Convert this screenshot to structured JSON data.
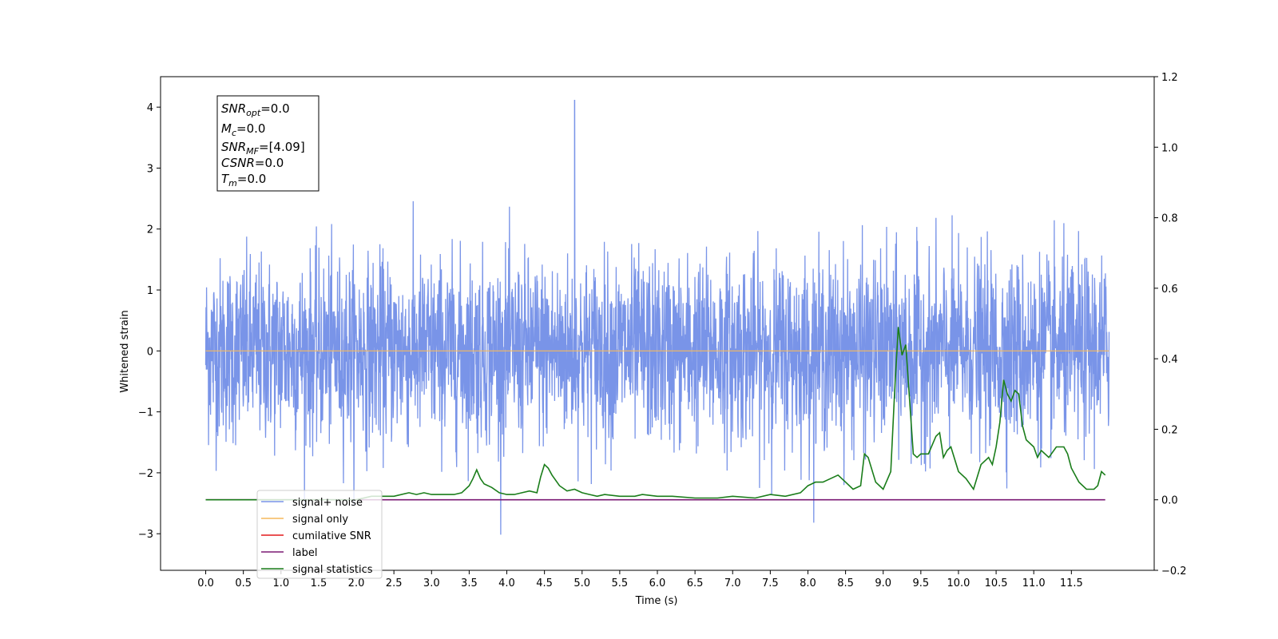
{
  "chart_data": {
    "type": "line",
    "xlabel": "Time (s)",
    "ylabel": "Whitened strain",
    "xlim": [
      -0.6,
      12.6
    ],
    "ylim": [
      -3.6,
      4.5
    ],
    "y2lim": [
      -0.2,
      1.2
    ],
    "x_ticks": [
      "0.0",
      "0.5",
      "1.0",
      "1.5",
      "2.0",
      "2.5",
      "3.0",
      "3.5",
      "4.0",
      "4.5",
      "5.0",
      "5.5",
      "6.0",
      "6.5",
      "7.0",
      "7.5",
      "8.0",
      "8.5",
      "9.0",
      "9.5",
      "10.0",
      "10.5",
      "11.0",
      "11.5"
    ],
    "y_ticks": [
      "4",
      "3",
      "2",
      "1",
      "0",
      "−1",
      "−2",
      "−3"
    ],
    "y2_ticks": [
      "1.2",
      "1.0",
      "0.8",
      "0.6",
      "0.4",
      "0.2",
      "0.0",
      "−0.2"
    ],
    "info_box": {
      "snr_opt": {
        "base": "SNR",
        "sub": "opt",
        "value": "=0.0"
      },
      "mc": {
        "base": "M",
        "sub": "c",
        "value": "=0.0"
      },
      "snr_mf": {
        "base": "SNR",
        "sub": "MF",
        "value": "=[4.09]"
      },
      "csnr": {
        "base": "CSNR",
        "value": "=0.0"
      },
      "tm": {
        "base": "T",
        "sub": "m",
        "value": "=0.0"
      }
    },
    "series": [
      {
        "name": "signal+ noise",
        "color": "#7994e8",
        "axis": "left",
        "kind": "noise",
        "x_range": [
          0,
          12
        ],
        "amplitude_std": 0.75,
        "peak": {
          "x": 4.9,
          "y": 4.12
        }
      },
      {
        "name": "signal only",
        "color": "#f5b85c",
        "axis": "left",
        "x": [
          0,
          12
        ],
        "y": [
          0,
          0
        ]
      },
      {
        "name": "cumilative SNR",
        "color": "#e41a1c",
        "axis": "right",
        "x": [],
        "y": []
      },
      {
        "name": "label",
        "color": "#7b1a73",
        "axis": "right",
        "x": [
          0,
          11.95
        ],
        "y": [
          0.0,
          0.0
        ]
      },
      {
        "name": "signal statistics",
        "color": "#1a7d1a",
        "axis": "right",
        "x": [
          0,
          0.5,
          1.0,
          1.5,
          2.0,
          2.2,
          2.5,
          2.7,
          2.8,
          2.9,
          3.0,
          3.1,
          3.3,
          3.4,
          3.5,
          3.55,
          3.6,
          3.65,
          3.7,
          3.8,
          3.9,
          4.0,
          4.1,
          4.2,
          4.3,
          4.4,
          4.45,
          4.5,
          4.55,
          4.6,
          4.7,
          4.8,
          4.9,
          5.0,
          5.1,
          5.2,
          5.3,
          5.5,
          5.7,
          5.8,
          6.0,
          6.2,
          6.5,
          6.8,
          7.0,
          7.3,
          7.5,
          7.7,
          7.9,
          8.0,
          8.1,
          8.2,
          8.3,
          8.4,
          8.5,
          8.6,
          8.7,
          8.75,
          8.8,
          8.9,
          9.0,
          9.1,
          9.15,
          9.2,
          9.25,
          9.3,
          9.4,
          9.45,
          9.5,
          9.6,
          9.7,
          9.75,
          9.8,
          9.85,
          9.9,
          10.0,
          10.1,
          10.2,
          10.3,
          10.4,
          10.45,
          10.5,
          10.55,
          10.6,
          10.65,
          10.7,
          10.75,
          10.8,
          10.85,
          10.9,
          11.0,
          11.05,
          11.1,
          11.2,
          11.3,
          11.35,
          11.4,
          11.45,
          11.5,
          11.6,
          11.7,
          11.8,
          11.85,
          11.9,
          11.95
        ],
        "y": [
          0.0,
          0.0,
          0.0,
          0.0,
          0.0,
          0.01,
          0.01,
          0.02,
          0.015,
          0.02,
          0.015,
          0.015,
          0.015,
          0.02,
          0.04,
          0.06,
          0.085,
          0.06,
          0.045,
          0.035,
          0.02,
          0.015,
          0.015,
          0.02,
          0.025,
          0.02,
          0.065,
          0.1,
          0.09,
          0.07,
          0.04,
          0.025,
          0.03,
          0.02,
          0.015,
          0.01,
          0.015,
          0.01,
          0.01,
          0.015,
          0.01,
          0.01,
          0.005,
          0.005,
          0.01,
          0.005,
          0.015,
          0.01,
          0.02,
          0.04,
          0.05,
          0.05,
          0.06,
          0.07,
          0.05,
          0.03,
          0.04,
          0.13,
          0.12,
          0.05,
          0.03,
          0.08,
          0.3,
          0.49,
          0.41,
          0.44,
          0.13,
          0.12,
          0.13,
          0.13,
          0.18,
          0.19,
          0.12,
          0.14,
          0.15,
          0.08,
          0.06,
          0.03,
          0.1,
          0.12,
          0.1,
          0.15,
          0.22,
          0.34,
          0.3,
          0.28,
          0.31,
          0.3,
          0.21,
          0.17,
          0.15,
          0.12,
          0.14,
          0.12,
          0.15,
          0.15,
          0.15,
          0.13,
          0.09,
          0.05,
          0.03,
          0.03,
          0.04,
          0.08,
          0.07
        ]
      }
    ],
    "legend": {
      "placement": "lower-left",
      "entries": [
        "signal+ noise",
        "signal only",
        "cumilative SNR",
        "label",
        "signal statistics"
      ]
    }
  }
}
